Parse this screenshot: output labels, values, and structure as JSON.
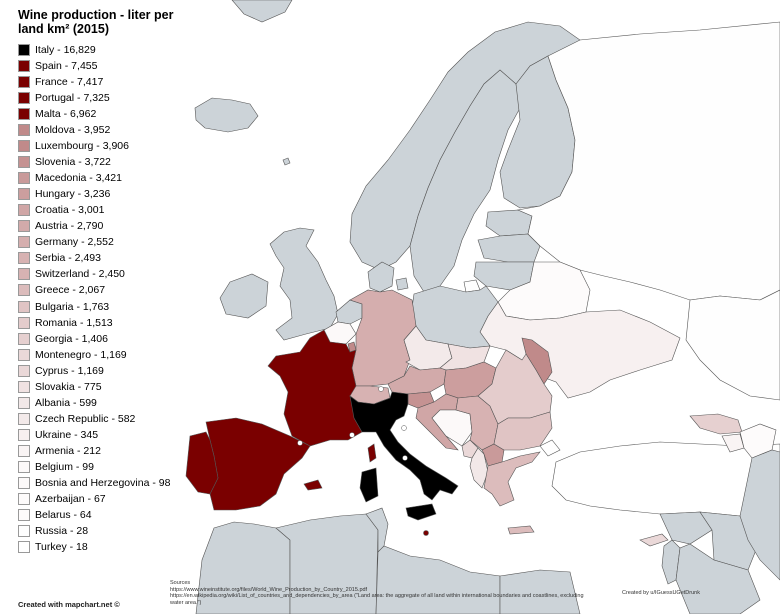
{
  "title": "Wine production - liter per land km² (2015)",
  "legend": [
    {
      "label": "Italy - 16,829",
      "color": "#000000"
    },
    {
      "label": "Spain - 7,455",
      "color": "#7a0000"
    },
    {
      "label": "France - 7,417",
      "color": "#7a0000"
    },
    {
      "label": "Portugal - 7,325",
      "color": "#7a0000"
    },
    {
      "label": "Malta - 6,962",
      "color": "#7a0000"
    },
    {
      "label": "Moldova - 3,952",
      "color": "#c08a8a"
    },
    {
      "label": "Luxembourg - 3,906",
      "color": "#c08a8a"
    },
    {
      "label": "Slovenia - 3,722",
      "color": "#c59292"
    },
    {
      "label": "Macedonia - 3,421",
      "color": "#c99a9a"
    },
    {
      "label": "Hungary - 3,236",
      "color": "#cc9e9e"
    },
    {
      "label": "Croatia - 3,001",
      "color": "#d0a6a6"
    },
    {
      "label": "Austria - 2,790",
      "color": "#d2aaaa"
    },
    {
      "label": "Germany - 2,552",
      "color": "#d5aeae"
    },
    {
      "label": "Serbia - 2,493",
      "color": "#d7b2b2"
    },
    {
      "label": "Switzerland - 2,450",
      "color": "#d7b2b2"
    },
    {
      "label": "Greece - 2,067",
      "color": "#dcbcbc"
    },
    {
      "label": "Bulgaria - 1,763",
      "color": "#e0c4c4"
    },
    {
      "label": "Romania - 1,513",
      "color": "#e4cccc"
    },
    {
      "label": "Georgia - 1,406",
      "color": "#e6d0d0"
    },
    {
      "label": "Montenegro - 1,169",
      "color": "#ead8d8"
    },
    {
      "label": "Cyprus - 1,169",
      "color": "#ead8d8"
    },
    {
      "label": "Slovakia - 775",
      "color": "#f0e2e2"
    },
    {
      "label": "Albania - 599",
      "color": "#f2e8e8"
    },
    {
      "label": "Czech Republic - 582",
      "color": "#f3eaea"
    },
    {
      "label": "Ukraine - 345",
      "color": "#f7f0f0"
    },
    {
      "label": "Armenia - 212",
      "color": "#f9f4f4"
    },
    {
      "label": "Belgium - 99",
      "color": "#fcf9f9"
    },
    {
      "label": "Bosnia and Herzegovina - 98",
      "color": "#fcf9f9"
    },
    {
      "label": "Azerbaijan - 67",
      "color": "#fdfbfb"
    },
    {
      "label": "Belarus - 64",
      "color": "#fdfbfb"
    },
    {
      "label": "Russia - 28",
      "color": "#fefefe"
    },
    {
      "label": "Turkey - 18",
      "color": "#ffffff"
    }
  ],
  "sources": {
    "heading": "Sources",
    "line1": "https://www.wineinstitute.org/files/World_Wine_Production_by_Country_2015.pdf",
    "line2": "https://en.wikipedia.org/wiki/List_of_countries_and_dependencies_by_area (\"Land area: the aggregate of all land within international boundaries and coastlines, excluding water area.\")"
  },
  "credit_author": "Created by u/IGuessUGetDrunk",
  "credit_site": "Created with mapchart.net ©",
  "colors": {
    "no_data": "#ccd3d8",
    "water": "#ffffff",
    "border": "#555555"
  }
}
